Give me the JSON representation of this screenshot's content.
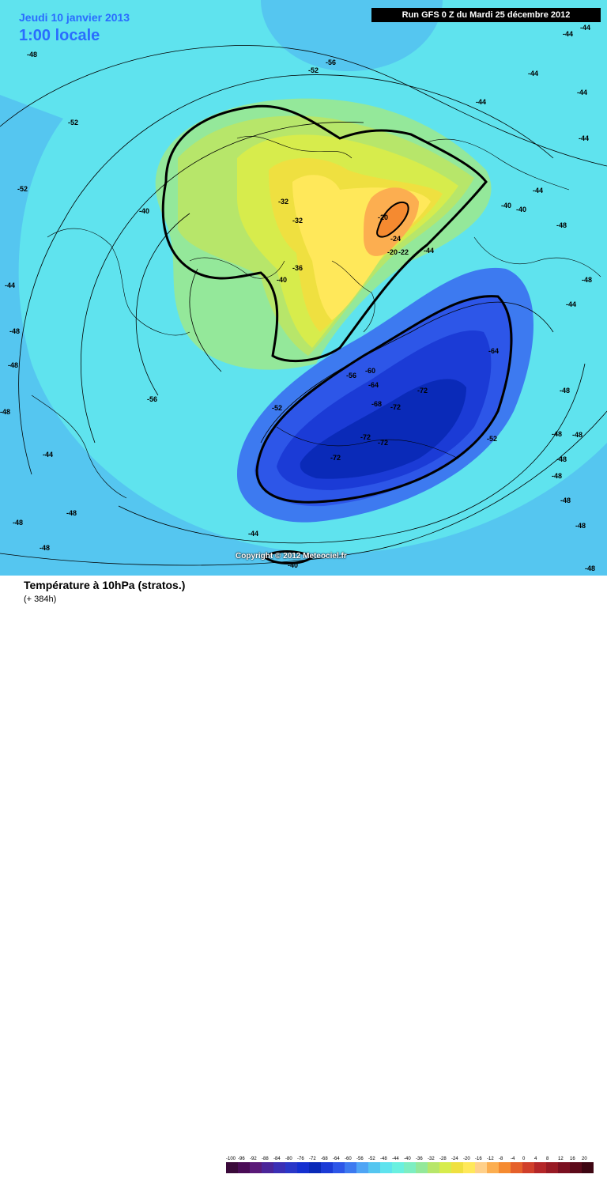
{
  "header": {
    "date_title": "Jeudi 10 janvier 2013",
    "time_title": "1:00 locale",
    "run_info": "Run GFS 0 Z du Mardi 25 décembre 2012"
  },
  "footer": {
    "title": "Température à 10hPa (stratos.)",
    "subtitle": "(+ 384h)",
    "copyright": "Copyright © 2012 Meteociel.fr"
  },
  "legend": {
    "labels": [
      "-100",
      "-96",
      "-92",
      "-88",
      "-84",
      "-80",
      "-76",
      "-72",
      "-68",
      "-64",
      "-60",
      "-56",
      "-52",
      "-48",
      "-44",
      "-40",
      "-36",
      "-32",
      "-28",
      "-24",
      "-20",
      "-16",
      "-12",
      "-8",
      "-4",
      "0",
      "4",
      "8",
      "12",
      "16",
      "20"
    ],
    "colors": [
      "#3a0a3a",
      "#4a0c56",
      "#5a1a78",
      "#4b2599",
      "#3b2fb5",
      "#2a37c8",
      "#1530d0",
      "#0a2ab8",
      "#1b3bd6",
      "#2d56e8",
      "#3d7af0",
      "#4fa5f5",
      "#55c6f0",
      "#5fe3ee",
      "#6af0e0",
      "#7deec2",
      "#94e89a",
      "#b7e66a",
      "#d7ec4c",
      "#efe040",
      "#ffe85a",
      "#ffd08a",
      "#fcae50",
      "#f58a30",
      "#e5602a",
      "#d03f2a",
      "#b42628",
      "#981a24",
      "#7a1020",
      "#5c0a1a",
      "#3e0612"
    ]
  },
  "map": {
    "contour_labels": [
      "-48",
      "-56",
      "-52",
      "-52",
      "-52",
      "-40",
      "-32",
      "-32",
      "-36",
      "-40",
      "-20",
      "-24",
      "-20",
      "-22",
      "-44",
      "-40",
      "-40",
      "-44",
      "-44",
      "-44",
      "-44",
      "-48",
      "-48",
      "-48",
      "-48",
      "-44",
      "-48",
      "-48",
      "-48",
      "-48",
      "-64",
      "-60",
      "-56",
      "-64",
      "-72",
      "-68",
      "-72",
      "-72",
      "-72",
      "-72",
      "-52",
      "-56",
      "-52",
      "-48",
      "-48",
      "-44",
      "-48",
      "-48",
      "-48",
      "-44",
      "-40",
      "-48",
      "-48",
      "-44",
      "-44",
      "-44",
      "-44",
      "-48"
    ]
  }
}
